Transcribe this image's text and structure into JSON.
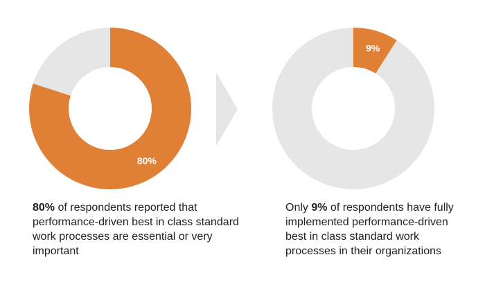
{
  "colors": {
    "accent": "#E07F36",
    "remainder": "#E6E6E6",
    "arrow": "#E6E6E6",
    "label": "#FFFFFF",
    "text": "#222222"
  },
  "chart_data": [
    {
      "type": "pie",
      "donut": true,
      "title": "",
      "slices": [
        {
          "label": "80%",
          "value": 80,
          "highlight": true
        },
        {
          "label": "",
          "value": 20,
          "highlight": false
        }
      ]
    },
    {
      "type": "pie",
      "donut": true,
      "title": "",
      "slices": [
        {
          "label": "9%",
          "value": 9,
          "highlight": true
        },
        {
          "label": "",
          "value": 91,
          "highlight": false
        }
      ]
    }
  ],
  "captions": [
    {
      "strong": "80%",
      "rest": " of respondents reported that performance-driven best in class standard work processes are essential or very important"
    },
    {
      "prefix": "Only ",
      "strong": "9%",
      "rest": " of respondents have fully implemented performance-driven best in class standard work processes in their organizations"
    }
  ],
  "arrow": {
    "icon": "chevron-right-icon"
  }
}
